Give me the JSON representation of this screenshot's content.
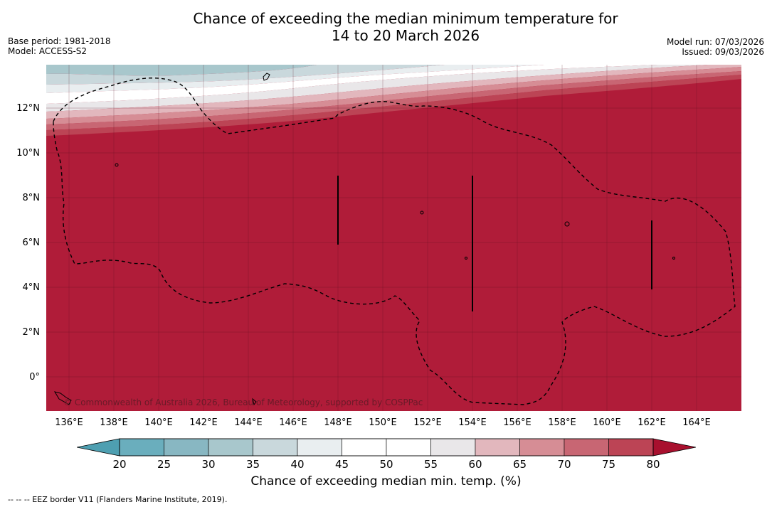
{
  "title": {
    "line1": "Chance of exceeding the median minimum temperature for",
    "line2": "14 to 20 March 2026"
  },
  "meta_left": {
    "base_period": "Base period: 1981-2018",
    "model": "Model: ACCESS-S2"
  },
  "meta_right": {
    "model_run": "Model run: 07/03/2026",
    "issued": "Issued: 09/03/2026"
  },
  "map": {
    "copyright": "© Commonwealth of Australia 2026, Bureau of Meteorology, supported by COSPPac",
    "latitude_labels": [
      "12°N",
      "10°N",
      "8°N",
      "6°N",
      "4°N",
      "2°N",
      "0°"
    ],
    "longitude_labels": [
      "136°E",
      "138°E",
      "140°E",
      "142°E",
      "144°E",
      "146°E",
      "148°E",
      "150°E",
      "152°E",
      "154°E",
      "156°E",
      "158°E",
      "160°E",
      "162°E",
      "164°E"
    ],
    "background_color": "#b01c39"
  },
  "colorbar": {
    "ticks": [
      "20",
      "25",
      "30",
      "35",
      "40",
      "45",
      "50",
      "55",
      "60",
      "65",
      "70",
      "75",
      "80"
    ],
    "colors": [
      "#6aaebd",
      "#88b7c2",
      "#a8c7cc",
      "#c9d8dc",
      "#e9eef0",
      "#ffffff",
      "#ffffff",
      "#e9e7e9",
      "#e2b7bd",
      "#d68d95",
      "#c86673",
      "#bc4455"
    ],
    "low_extend_color": "#4e9fb1",
    "high_extend_color": "#a8102e",
    "label": "Chance of exceeding median min. temp. (%)"
  },
  "footnote": "--  --  -- EEZ border V11 (Flanders Marine Institute, 2019)."
}
